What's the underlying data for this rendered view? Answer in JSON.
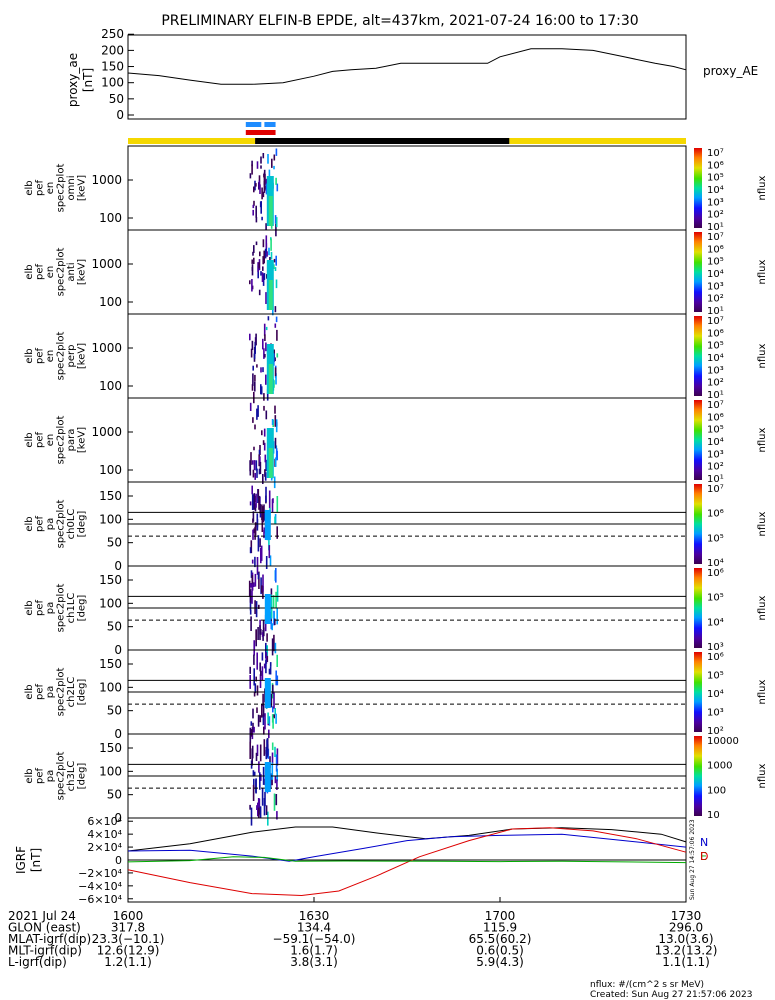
{
  "title": "PRELIMINARY ELFIN-B EPDE, alt=437km, 2021-07-24 16:00 to 17:30",
  "colors": {
    "yellow_bar": "#f5d800",
    "black_bar": "#000000",
    "science_blue": "#1e8cff",
    "science_red": "#e00000",
    "bx": "#000000",
    "by": "#0000cc",
    "bz": "#00aa00",
    "bt": "#dd0000"
  },
  "proxy_ae": {
    "ylabel": "proxy_ae\n[nT]",
    "legend": "proxy_AE",
    "yticks": [
      "250",
      "200",
      "150",
      "100",
      "50",
      "0"
    ]
  },
  "spec_panels": [
    {
      "ylabel": [
        "elb",
        "pef",
        "en",
        "spec2plot",
        "omni",
        "[keV]"
      ],
      "yticks": [
        "1000",
        "100"
      ],
      "cbar_ticks": [
        "10⁷",
        "10⁶",
        "10⁵",
        "10⁴",
        "10³",
        "10²",
        "10¹"
      ],
      "cbar_label": "nflux"
    },
    {
      "ylabel": [
        "elb",
        "pef",
        "en",
        "spec2plot",
        "anti",
        "[keV]"
      ],
      "yticks": [
        "1000",
        "100"
      ],
      "cbar_ticks": [
        "10⁷",
        "10⁶",
        "10⁵",
        "10⁴",
        "10³",
        "10²",
        "10¹"
      ],
      "cbar_label": "nflux"
    },
    {
      "ylabel": [
        "elb",
        "pef",
        "en",
        "spec2plot",
        "perp",
        "[keV]"
      ],
      "yticks": [
        "1000",
        "100"
      ],
      "cbar_ticks": [
        "10⁷",
        "10⁶",
        "10⁵",
        "10⁴",
        "10³",
        "10²",
        "10¹"
      ],
      "cbar_label": "nflux"
    },
    {
      "ylabel": [
        "elb",
        "pef",
        "en",
        "spec2plot",
        "para",
        "[keV]"
      ],
      "yticks": [
        "1000",
        "100"
      ],
      "cbar_ticks": [
        "10⁷",
        "10⁶",
        "10⁵",
        "10⁴",
        "10³",
        "10²",
        "10¹"
      ],
      "cbar_label": "nflux"
    }
  ],
  "pa_panels": [
    {
      "ylabel": [
        "elb",
        "pef",
        "pa",
        "spec2plot",
        "ch0LC",
        "[deg]"
      ],
      "yticks": [
        "150",
        "100",
        "50",
        "0"
      ],
      "cbar_ticks": [
        "10⁷",
        "10⁶",
        "10⁵",
        "10⁴"
      ],
      "cbar_label": "nflux"
    },
    {
      "ylabel": [
        "elb",
        "pef",
        "pa",
        "spec2plot",
        "ch1LC",
        "[deg]"
      ],
      "yticks": [
        "150",
        "100",
        "50",
        "0"
      ],
      "cbar_ticks": [
        "10⁶",
        "10⁵",
        "10⁴",
        "10³"
      ],
      "cbar_label": "nflux"
    },
    {
      "ylabel": [
        "elb",
        "pef",
        "pa",
        "spec2plot",
        "ch2LC",
        "[deg]"
      ],
      "yticks": [
        "150",
        "100",
        "50",
        "0"
      ],
      "cbar_ticks": [
        "10⁶",
        "10⁵",
        "10⁴",
        "10³",
        "10²"
      ],
      "cbar_label": "nflux"
    },
    {
      "ylabel": [
        "elb",
        "pef",
        "pa",
        "spec2plot",
        "ch3LC",
        "[deg]"
      ],
      "yticks": [
        "150",
        "100",
        "50",
        "0"
      ],
      "cbar_ticks": [
        "10000",
        "1000",
        "100",
        "10"
      ],
      "cbar_label": "nflux"
    }
  ],
  "igrf": {
    "ylabel": "IGRF\n[nT]",
    "yticks": [
      "6×10⁴",
      "4×10⁴",
      "2×10⁴",
      "0",
      "−2×10⁴",
      "−4×10⁴",
      "−6×10⁴"
    ],
    "legend": [
      "N",
      "E",
      "D"
    ],
    "side_note": "Sun Aug 27 14:57:06 2023"
  },
  "footer": {
    "rows": [
      {
        "label": "2021 Jul 24",
        "values": [
          "1600",
          "1630",
          "1700",
          "1730"
        ]
      },
      {
        "label": "GLON (east)",
        "values": [
          "317.8",
          "134.4",
          "115.9",
          "296.0"
        ]
      },
      {
        "label": "MLAT-igrf(dip)",
        "values": [
          "23.3(−10.1)",
          "−59.1(−54.0)",
          "65.5(60.2)",
          "13.0(3.6)"
        ]
      },
      {
        "label": "MLT-igrf(dip)",
        "values": [
          "12.6(12.9)",
          "1.6(1.7)",
          "0.6(0.5)",
          "13.2(13.2)"
        ]
      },
      {
        "label": "L-igrf(dip)",
        "values": [
          "1.2(1.1)",
          "3.8(3.1)",
          "5.9(4.3)",
          "1.1(1.1)"
        ]
      }
    ],
    "units_note": "nflux: #/(cm^2 s sr MeV)",
    "created": "Created: Sun Aug 27 21:57:06 2023"
  },
  "chart_data": {
    "type": "line",
    "x_range_min": [
      0,
      90
    ],
    "proxy_ae": {
      "ylim": [
        0,
        260
      ],
      "x": [
        0,
        5,
        10,
        15,
        20,
        25,
        30,
        33,
        36,
        40,
        44,
        50,
        55,
        58,
        60,
        65,
        70,
        75,
        80,
        85,
        88,
        90
      ],
      "y": [
        130,
        122,
        108,
        95,
        95,
        100,
        120,
        135,
        140,
        145,
        160,
        160,
        160,
        160,
        180,
        205,
        205,
        200,
        180,
        160,
        150,
        140
      ]
    },
    "science_zones_min": {
      "blue": [
        [
          19.0,
          21.5
        ],
        [
          22.0,
          23.8
        ]
      ],
      "red": [
        [
          19.0,
          23.8
        ]
      ]
    },
    "lshell_bar_min": {
      "yellow": [
        [
          0,
          20.5
        ],
        [
          61.5,
          90
        ]
      ],
      "black": [
        [
          20.5,
          61.5
        ]
      ]
    },
    "activity_window_min": [
      19.5,
      24.0
    ],
    "igrf": {
      "ylim": [
        -65000,
        65000
      ],
      "series": [
        {
          "name": "N",
          "x": [
            0,
            10,
            20,
            27,
            33,
            40,
            48,
            55,
            62,
            70,
            78,
            86,
            90
          ],
          "y": [
            14000,
            25000,
            43000,
            51000,
            51000,
            42000,
            33000,
            38000,
            48000,
            50000,
            47000,
            40000,
            28000
          ]
        },
        {
          "name": "E",
          "x": [
            0,
            10,
            20,
            26,
            30,
            38,
            45,
            52,
            60,
            70,
            80,
            90
          ],
          "y": [
            14000,
            15000,
            6000,
            -2000,
            5000,
            18000,
            30000,
            36000,
            38000,
            40000,
            30000,
            20000
          ]
        },
        {
          "name": "D",
          "x": [
            0,
            10,
            20,
            28,
            34,
            40,
            47,
            55,
            62,
            68,
            75,
            82,
            90
          ],
          "y": [
            -15000,
            -35000,
            -52000,
            -55000,
            -48000,
            -25000,
            5000,
            30000,
            48000,
            50000,
            45000,
            33000,
            12000
          ]
        },
        {
          "name": "",
          "x": [
            0,
            10,
            17,
            22,
            27,
            35,
            50,
            60,
            70,
            80,
            90
          ],
          "y": [
            -3000,
            -1000,
            5000,
            4000,
            -2000,
            -1500,
            -2000,
            -2500,
            -2000,
            -3000,
            -4000
          ]
        }
      ]
    }
  }
}
